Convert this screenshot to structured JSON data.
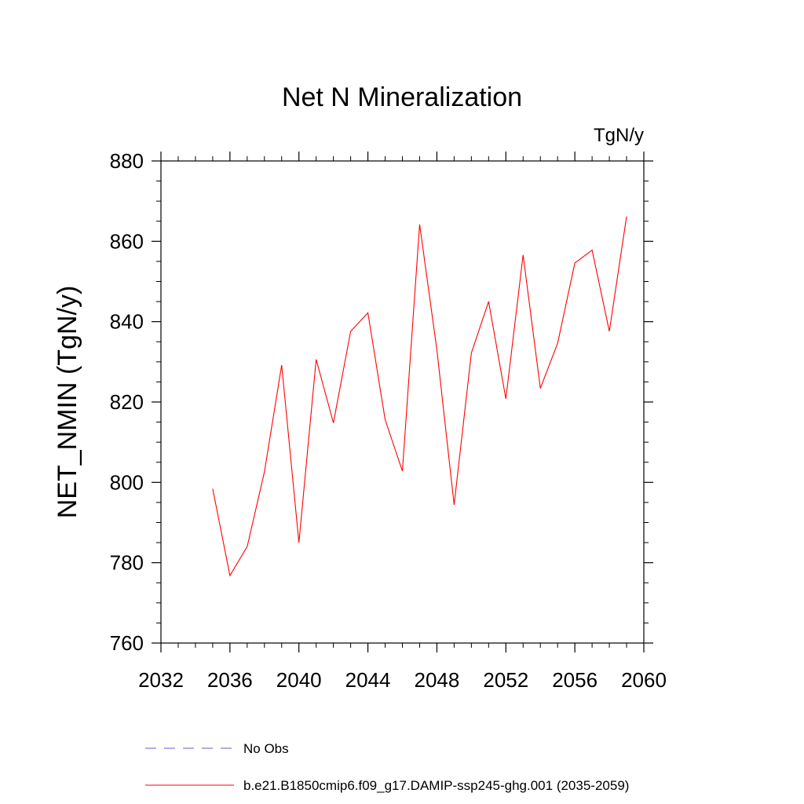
{
  "chart_data": {
    "type": "line",
    "title": "Net N Mineralization",
    "units": "TgN/y",
    "ylabel": "NET_NMIN  (TgN/y)",
    "xlabel": "",
    "xlim": [
      2032,
      2060
    ],
    "ylim": [
      760,
      880
    ],
    "x_ticks": [
      2032,
      2036,
      2040,
      2044,
      2048,
      2052,
      2056,
      2060
    ],
    "y_ticks": [
      760,
      780,
      800,
      820,
      840,
      860,
      880
    ],
    "grid": false,
    "legend_position": "bottom",
    "series": [
      {
        "name": "No Obs",
        "color": "#6a5acd",
        "dash": "dashed",
        "x": [],
        "values": []
      },
      {
        "name": "b.e21.B1850cmip6.f09_g17.DAMIP-ssp245-ghg.001 (2035-2059)",
        "color": "#ff0000",
        "dash": "solid",
        "x": [
          2035,
          2036,
          2037,
          2038,
          2039,
          2040,
          2041,
          2042,
          2043,
          2044,
          2045,
          2046,
          2047,
          2048,
          2049,
          2050,
          2051,
          2052,
          2053,
          2054,
          2055,
          2056,
          2057,
          2058,
          2059
        ],
        "values": [
          798.4,
          776.8,
          784.0,
          802.6,
          829.2,
          785.0,
          830.6,
          814.8,
          837.6,
          842.2,
          815.6,
          802.8,
          864.2,
          833.0,
          794.4,
          832.2,
          845.0,
          820.8,
          856.6,
          823.4,
          834.6,
          854.6,
          857.8,
          837.6,
          866.2
        ]
      }
    ]
  }
}
